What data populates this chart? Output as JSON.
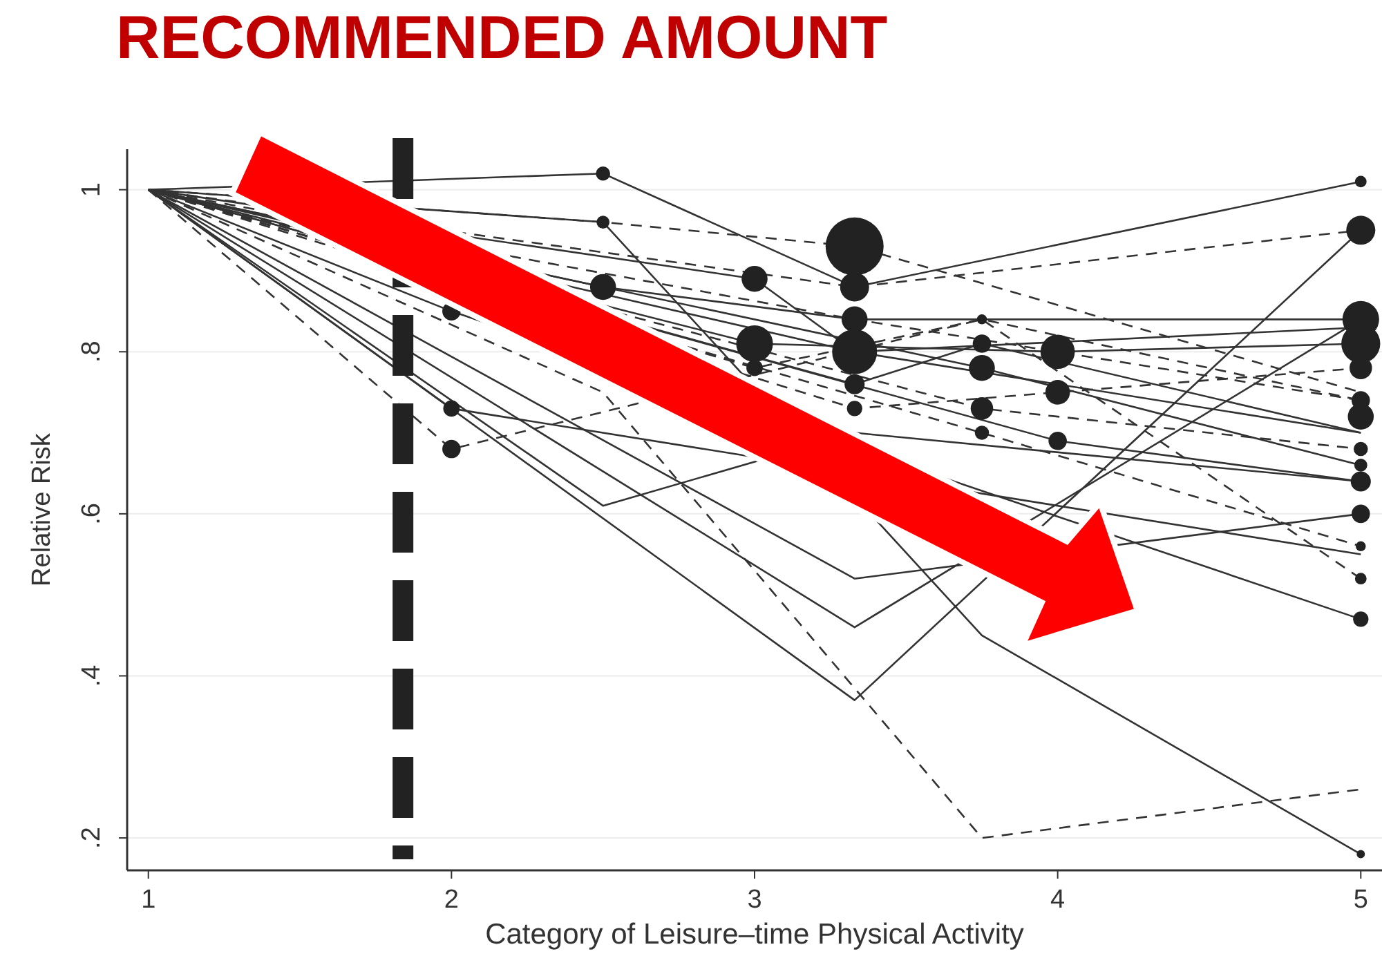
{
  "chart_data": {
    "type": "line",
    "title": "RECOMMENDED AMOUNT",
    "xlabel": "Category of Leisure–time Physical Activity",
    "ylabel": "Relative Risk",
    "xlim": [
      0.93,
      5.07
    ],
    "ylim": [
      0.16,
      1.05
    ],
    "xticks": [
      1,
      2,
      3,
      4,
      5
    ],
    "yticks": [
      {
        "value": 0.2,
        "label": ".2"
      },
      {
        "value": 0.4,
        "label": ".4"
      },
      {
        "value": 0.6,
        "label": ".6"
      },
      {
        "value": 0.8,
        "label": ".8"
      },
      1
    ],
    "grid": "y",
    "ref_lines": [
      {
        "axis": "x",
        "value": 1.84,
        "color": "#222222",
        "line_style": "dashed"
      }
    ],
    "series": [
      {
        "color": "#333333",
        "line_style": "solid",
        "x": [
          1,
          2.5,
          3.33,
          5
        ],
        "values": [
          1,
          1.02,
          0.88,
          1.01
        ]
      },
      {
        "color": "#333333",
        "line_style": "dashed",
        "x": [
          1,
          2.5,
          3.33,
          5
        ],
        "values": [
          1,
          0.96,
          0.93,
          0.75
        ]
      },
      {
        "color": "#333333",
        "line_style": "solid",
        "x": [
          1,
          2.5,
          3.75,
          5
        ],
        "values": [
          1,
          0.96,
          0.45,
          0.18
        ]
      },
      {
        "color": "#333333",
        "line_style": "dashed",
        "x": [
          1,
          3.33,
          5
        ],
        "values": [
          1,
          0.88,
          0.95
        ]
      },
      {
        "color": "#333333",
        "line_style": "solid",
        "x": [
          1,
          2.5,
          3.33,
          5
        ],
        "values": [
          1,
          0.88,
          0.84,
          0.84
        ]
      },
      {
        "color": "#333333",
        "line_style": "solid",
        "x": [
          1,
          3,
          3.33,
          5
        ],
        "values": [
          1,
          0.89,
          0.8,
          0.83
        ]
      },
      {
        "color": "#333333",
        "line_style": "solid",
        "x": [
          1,
          3,
          4,
          5
        ],
        "values": [
          1,
          0.81,
          0.8,
          0.81
        ]
      },
      {
        "color": "#333333",
        "line_style": "dashed",
        "x": [
          1,
          3,
          3.75,
          5
        ],
        "values": [
          1,
          0.78,
          0.84,
          0.74
        ]
      },
      {
        "color": "#333333",
        "line_style": "solid",
        "x": [
          1,
          3.33,
          3.75,
          5
        ],
        "values": [
          1,
          0.76,
          0.81,
          0.7
        ]
      },
      {
        "color": "#333333",
        "line_style": "dashed",
        "x": [
          1,
          3.33,
          4,
          5
        ],
        "values": [
          1,
          0.73,
          0.75,
          0.78
        ]
      },
      {
        "color": "#333333",
        "line_style": "solid",
        "x": [
          1,
          3.75,
          5
        ],
        "values": [
          1,
          0.78,
          0.66
        ]
      },
      {
        "color": "#333333",
        "line_style": "dashed",
        "x": [
          1,
          3.75,
          5
        ],
        "values": [
          1,
          0.73,
          0.68
        ]
      },
      {
        "color": "#333333",
        "line_style": "solid",
        "x": [
          1,
          4,
          5
        ],
        "values": [
          1,
          0.69,
          0.64
        ]
      },
      {
        "color": "#333333",
        "line_style": "dashed",
        "x": [
          1,
          3.75,
          5
        ],
        "values": [
          1,
          0.7,
          0.56
        ]
      },
      {
        "color": "#333333",
        "line_style": "solid",
        "x": [
          1,
          2,
          5
        ],
        "values": [
          1,
          0.73,
          0.55
        ]
      },
      {
        "color": "#333333",
        "line_style": "dashed",
        "x": [
          1,
          2,
          3.75,
          5
        ],
        "values": [
          1,
          0.68,
          0.84,
          0.52
        ]
      },
      {
        "color": "#333333",
        "line_style": "solid",
        "x": [
          1,
          3.33,
          5
        ],
        "values": [
          1,
          0.52,
          0.6
        ]
      },
      {
        "color": "#333333",
        "line_style": "solid",
        "x": [
          1,
          3.33,
          5
        ],
        "values": [
          1,
          0.46,
          0.84
        ]
      },
      {
        "color": "#333333",
        "line_style": "solid",
        "x": [
          1,
          3.33,
          5
        ],
        "values": [
          1,
          0.37,
          0.95
        ]
      },
      {
        "color": "#333333",
        "line_style": "dashed",
        "x": [
          1,
          2.5,
          3.75,
          5
        ],
        "values": [
          1,
          0.75,
          0.2,
          0.26
        ]
      },
      {
        "color": "#333333",
        "line_style": "solid",
        "x": [
          1,
          2,
          5
        ],
        "values": [
          1,
          0.85,
          0.47
        ]
      },
      {
        "color": "#333333",
        "line_style": "solid",
        "x": [
          1,
          2.5,
          3.33,
          5
        ],
        "values": [
          1,
          0.61,
          0.7,
          0.64
        ]
      },
      {
        "color": "#333333",
        "line_style": "dashed",
        "x": [
          1,
          3.33,
          5
        ],
        "values": [
          1,
          0.84,
          0.74
        ]
      },
      {
        "color": "#333333",
        "line_style": "solid",
        "x": [
          1,
          3.33,
          5
        ],
        "values": [
          1,
          0.8,
          0.7
        ]
      },
      {
        "type": "bubble",
        "color": "#222222",
        "x": [
          2.5,
          2.5,
          2.5,
          2,
          2,
          2,
          3,
          3,
          3,
          3.33,
          3.33,
          3.33,
          3.33,
          3.33,
          3.33,
          3.75,
          3.75,
          3.75,
          3.75,
          3.75,
          4,
          4,
          4,
          5,
          5,
          5,
          5,
          5,
          5,
          5,
          5,
          5,
          5,
          5,
          5,
          5,
          5,
          5
        ],
        "values": [
          1.02,
          0.96,
          0.88,
          0.85,
          0.73,
          0.68,
          0.89,
          0.81,
          0.78,
          0.93,
          0.88,
          0.84,
          0.8,
          0.76,
          0.73,
          0.84,
          0.81,
          0.78,
          0.73,
          0.7,
          0.8,
          0.75,
          0.69,
          1.01,
          0.95,
          0.84,
          0.81,
          0.78,
          0.74,
          0.72,
          0.68,
          0.66,
          0.64,
          0.6,
          0.56,
          0.52,
          0.47,
          0.18
        ],
        "sizes": [
          0.06,
          0.05,
          0.2,
          0.1,
          0.08,
          0.1,
          0.2,
          0.4,
          0.08,
          1,
          0.25,
          0.2,
          0.6,
          0.12,
          0.07,
          0.03,
          0.1,
          0.2,
          0.15,
          0.06,
          0.35,
          0.18,
          0.1,
          0.04,
          0.25,
          0.4,
          0.45,
          0.15,
          0.1,
          0.2,
          0.06,
          0.05,
          0.12,
          0.1,
          0.03,
          0.04,
          0.07,
          0.02
        ]
      }
    ]
  }
}
